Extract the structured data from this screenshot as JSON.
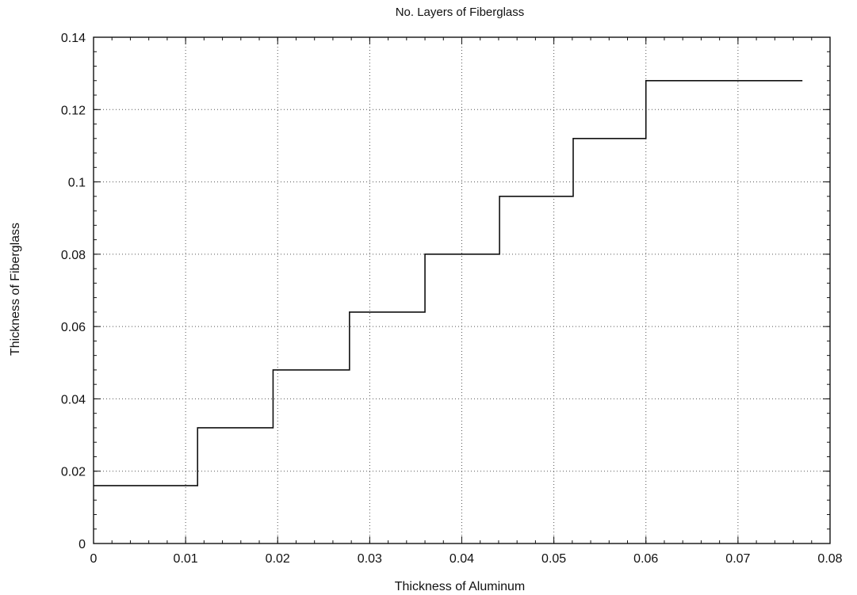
{
  "chart_data": {
    "type": "line",
    "step": true,
    "title": "No. Layers of Fiberglass",
    "xlabel": "Thickness of Aluminum",
    "ylabel": "Thickness of Fiberglass",
    "xlim": [
      0,
      0.08
    ],
    "ylim": [
      0,
      0.14
    ],
    "x_ticks": [
      "0",
      "0.01",
      "0.02",
      "0.03",
      "0.04",
      "0.05",
      "0.06",
      "0.07",
      "0.08"
    ],
    "y_ticks": [
      "0",
      "0.02",
      "0.04",
      "0.06",
      "0.08",
      "0.1",
      "0.12",
      "0.14"
    ],
    "x_tick_values": [
      0,
      0.01,
      0.02,
      0.03,
      0.04,
      0.05,
      0.06,
      0.07,
      0.08
    ],
    "y_tick_values": [
      0,
      0.02,
      0.04,
      0.06,
      0.08,
      0.1,
      0.12,
      0.14
    ],
    "grid": true,
    "series": [
      {
        "x": [
          0,
          0.0113,
          0.0113,
          0.0195,
          0.0195,
          0.0278,
          0.0278,
          0.036,
          0.036,
          0.0441,
          0.0441,
          0.0521,
          0.0521,
          0.06,
          0.06,
          0.077
        ],
        "y": [
          0.016,
          0.016,
          0.032,
          0.032,
          0.048,
          0.048,
          0.064,
          0.064,
          0.08,
          0.08,
          0.096,
          0.096,
          0.112,
          0.112,
          0.128,
          0.128
        ]
      }
    ]
  },
  "colors": {
    "line": "#111111",
    "grid": "#555555",
    "frame": "#111111"
  }
}
